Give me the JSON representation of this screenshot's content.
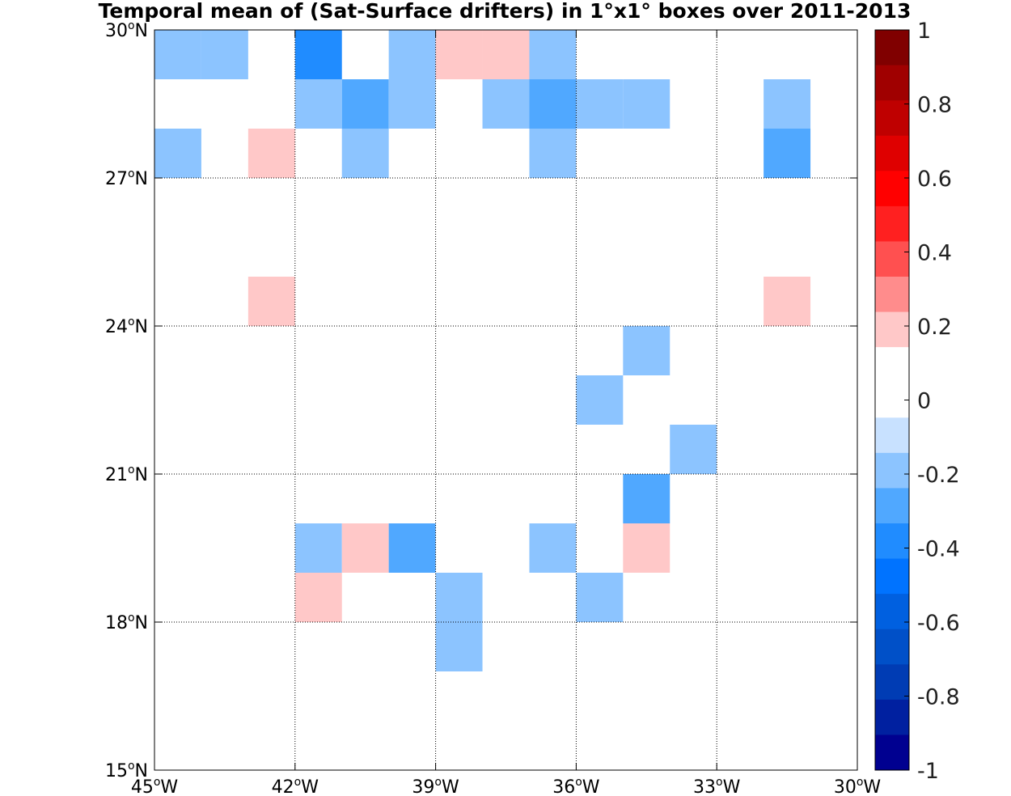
{
  "chart_data": {
    "type": "heatmap",
    "title": "Temporal mean of (Sat-Surface drifters) in 1°x1° boxes over 2011-2013",
    "xlim": [
      -45,
      -30
    ],
    "ylim": [
      15,
      30
    ],
    "x_ticks": [
      {
        "value": -45,
        "num": "45",
        "sup": "o",
        "hem": "W"
      },
      {
        "value": -42,
        "num": "42",
        "sup": "o",
        "hem": "W"
      },
      {
        "value": -39,
        "num": "39",
        "sup": "o",
        "hem": "W"
      },
      {
        "value": -36,
        "num": "36",
        "sup": "o",
        "hem": "W"
      },
      {
        "value": -33,
        "num": "33",
        "sup": "o",
        "hem": "W"
      },
      {
        "value": -30,
        "num": "30",
        "sup": "o",
        "hem": "W"
      }
    ],
    "y_ticks": [
      {
        "value": 15,
        "num": "15",
        "sup": "o",
        "hem": "N"
      },
      {
        "value": 18,
        "num": "18",
        "sup": "o",
        "hem": "N"
      },
      {
        "value": 21,
        "num": "21",
        "sup": "o",
        "hem": "N"
      },
      {
        "value": 24,
        "num": "24",
        "sup": "o",
        "hem": "N"
      },
      {
        "value": 27,
        "num": "27",
        "sup": "o",
        "hem": "N"
      },
      {
        "value": 30,
        "num": "30",
        "sup": "o",
        "hem": "N"
      }
    ],
    "grid": true,
    "cell_size_deg": 1,
    "cells": [
      {
        "lon": -45,
        "lat": 29,
        "value": -0.15
      },
      {
        "lon": -44,
        "lat": 29,
        "value": -0.15
      },
      {
        "lon": -42,
        "lat": 29,
        "value": -0.35
      },
      {
        "lon": -40,
        "lat": 29,
        "value": -0.15
      },
      {
        "lon": -39,
        "lat": 29,
        "value": 0.15
      },
      {
        "lon": -38,
        "lat": 29,
        "value": 0.15
      },
      {
        "lon": -37,
        "lat": 29,
        "value": -0.15
      },
      {
        "lon": -42,
        "lat": 28,
        "value": -0.15
      },
      {
        "lon": -41,
        "lat": 28,
        "value": -0.25
      },
      {
        "lon": -40,
        "lat": 28,
        "value": -0.15
      },
      {
        "lon": -38,
        "lat": 28,
        "value": -0.15
      },
      {
        "lon": -37,
        "lat": 28,
        "value": -0.25
      },
      {
        "lon": -36,
        "lat": 28,
        "value": -0.15
      },
      {
        "lon": -35,
        "lat": 28,
        "value": -0.15
      },
      {
        "lon": -32,
        "lat": 28,
        "value": -0.15
      },
      {
        "lon": -45,
        "lat": 27,
        "value": -0.15
      },
      {
        "lon": -43,
        "lat": 27,
        "value": 0.15
      },
      {
        "lon": -41,
        "lat": 27,
        "value": -0.15
      },
      {
        "lon": -37,
        "lat": 27,
        "value": -0.15
      },
      {
        "lon": -32,
        "lat": 27,
        "value": -0.25
      },
      {
        "lon": -43,
        "lat": 24,
        "value": 0.15
      },
      {
        "lon": -32,
        "lat": 24,
        "value": 0.15
      },
      {
        "lon": -35,
        "lat": 23,
        "value": -0.15
      },
      {
        "lon": -36,
        "lat": 22,
        "value": -0.15
      },
      {
        "lon": -34,
        "lat": 21,
        "value": -0.15
      },
      {
        "lon": -35,
        "lat": 20,
        "value": -0.25
      },
      {
        "lon": -42,
        "lat": 19,
        "value": -0.15
      },
      {
        "lon": -41,
        "lat": 19,
        "value": 0.15
      },
      {
        "lon": -40,
        "lat": 19,
        "value": -0.25
      },
      {
        "lon": -37,
        "lat": 19,
        "value": -0.15
      },
      {
        "lon": -35,
        "lat": 19,
        "value": 0.15
      },
      {
        "lon": -42,
        "lat": 18,
        "value": 0.15
      },
      {
        "lon": -39,
        "lat": 18,
        "value": -0.15
      },
      {
        "lon": -36,
        "lat": 18,
        "value": -0.15
      },
      {
        "lon": -39,
        "lat": 17,
        "value": -0.15
      }
    ],
    "colorbar": {
      "range": [
        -1,
        1
      ],
      "tick_labels": [
        "1",
        "0.8",
        "0.6",
        "0.4",
        "0.2",
        "0",
        "-0.2",
        "-0.4",
        "-0.6",
        "-0.8",
        "-1"
      ],
      "colors_top_to_bottom": [
        "#800000",
        "#a00000",
        "#bf0000",
        "#df0000",
        "#ff0000",
        "#ff2020",
        "#ff5050",
        "#ff8c8c",
        "#ffc8c8",
        "#ffffff",
        "#ffffff",
        "#c8e1ff",
        "#8cc4ff",
        "#50a8ff",
        "#208cff",
        "#0073ff",
        "#0060e0",
        "#0050c8",
        "#003cb4",
        "#0020a0",
        "#000090"
      ]
    }
  }
}
